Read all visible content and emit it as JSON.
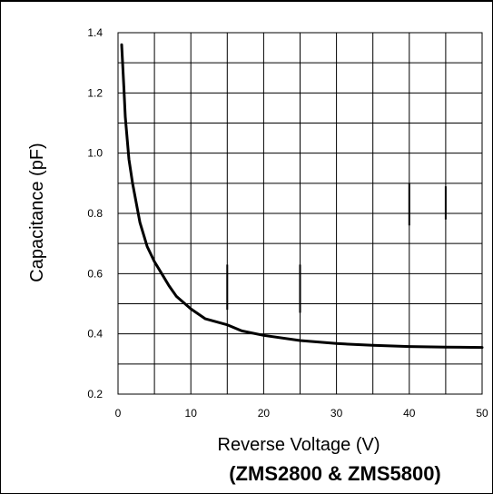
{
  "chart_data": {
    "type": "line",
    "title": "",
    "subtitle": "(ZMS2800 & ZMS5800)",
    "xlabel": "Reverse Voltage (V)",
    "ylabel": "Capacitance (pF)",
    "xlim": [
      0,
      50
    ],
    "ylim": [
      0.2,
      1.4
    ],
    "xticks": [
      0,
      10,
      20,
      30,
      40,
      50
    ],
    "yticks": [
      0.2,
      0.4,
      0.6,
      0.8,
      1.0,
      1.2,
      1.4
    ],
    "xtick_labels": [
      "0",
      "10",
      "20",
      "30",
      "40",
      "50"
    ],
    "ytick_labels": [
      "0.2",
      "0.4",
      "0.6",
      "0.8",
      "1.0",
      "1.2",
      "1.4"
    ],
    "grid": true,
    "series": [
      {
        "x": [
          0.5,
          0.8,
          1,
          1.5,
          2,
          3,
          4,
          5,
          6,
          7,
          8,
          10,
          12,
          15,
          17,
          20,
          25,
          30,
          35,
          40,
          45,
          50
        ],
        "y": [
          1.36,
          1.22,
          1.12,
          0.98,
          0.9,
          0.77,
          0.69,
          0.64,
          0.6,
          0.56,
          0.525,
          0.483,
          0.45,
          0.43,
          0.41,
          0.395,
          0.378,
          0.368,
          0.362,
          0.358,
          0.356,
          0.355
        ]
      }
    ]
  }
}
